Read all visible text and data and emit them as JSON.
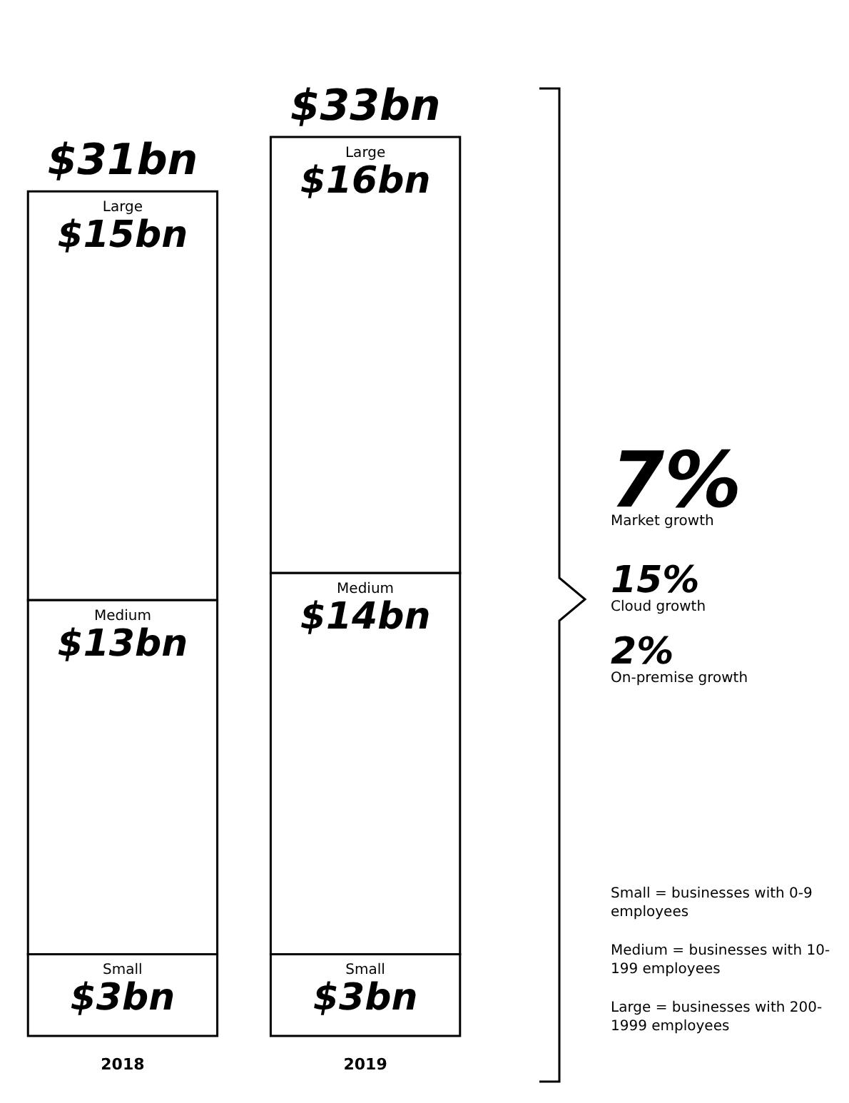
{
  "chart_data": {
    "type": "bar",
    "stacked": true,
    "categories": [
      "2018",
      "2019"
    ],
    "series": [
      {
        "name": "Small",
        "color": "#ffffff",
        "values": [
          3,
          3
        ],
        "value_labels": [
          "$3bn",
          "$3bn"
        ]
      },
      {
        "name": "Medium",
        "color": "#ffffff",
        "values": [
          13,
          14
        ],
        "value_labels": [
          "$13bn",
          "$14bn"
        ]
      },
      {
        "name": "Large",
        "color": "#ffffff",
        "values": [
          15,
          16
        ],
        "value_labels": [
          "$15bn",
          "$16bn"
        ]
      }
    ],
    "totals": [
      "$31bn",
      "$33bn"
    ],
    "annotations": [
      "7%",
      "Market growth",
      "15%",
      "Cloud growth",
      "2%",
      "On-premise growth",
      "Small = businesses with 0-9 employees",
      "Medium = businesses with 10-199 employees",
      "Large = businesses with 200-1999 employees"
    ]
  }
}
